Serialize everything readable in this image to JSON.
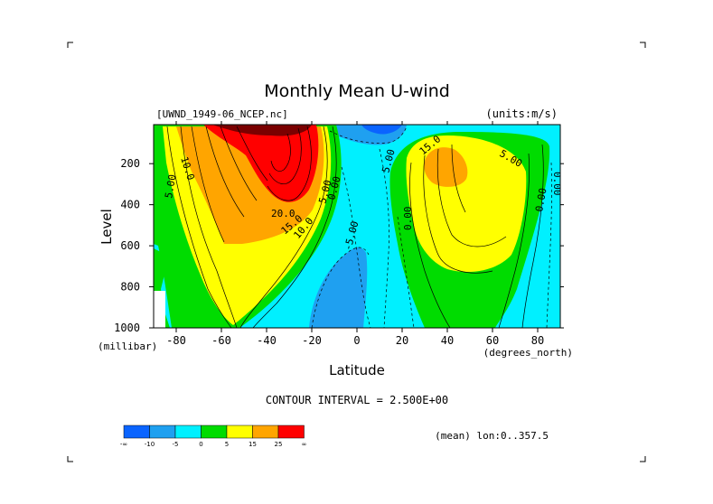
{
  "chart_data": {
    "type": "contour",
    "title": "Monthly Mean U-wind",
    "dataset": "[UWND_1949-06_NCEP.nc]",
    "units": "(units:m/s)",
    "xlabel": "Latitude",
    "x_units": "(degrees_north)",
    "ylabel": "Level",
    "y_units": "(millibar)",
    "xlim": [
      -90,
      90
    ],
    "ylim": [
      1000,
      10
    ],
    "x_ticks": [
      {
        "value": -80,
        "label": "-80"
      },
      {
        "value": -60,
        "label": "-60"
      },
      {
        "value": -40,
        "label": "-40"
      },
      {
        "value": -20,
        "label": "-20"
      },
      {
        "value": 0,
        "label": "0"
      },
      {
        "value": 20,
        "label": "20"
      },
      {
        "value": 40,
        "label": "40"
      },
      {
        "value": 60,
        "label": "60"
      },
      {
        "value": 80,
        "label": "80"
      }
    ],
    "y_ticks": [
      {
        "value": 200,
        "label": "200"
      },
      {
        "value": 400,
        "label": "400"
      },
      {
        "value": 600,
        "label": "600"
      },
      {
        "value": 800,
        "label": "800"
      },
      {
        "value": 1000,
        "label": "1000"
      }
    ],
    "contour_interval_text": "CONTOUR INTERVAL = 2.500E+00",
    "contour_labels": [
      "10.0",
      "5.00",
      "20.0",
      "15.0",
      "10.0",
      "5.00",
      "0.00",
      "-5.00",
      "15.0",
      "5.00",
      "0.00",
      "0.00",
      "0.00",
      "5.00"
    ],
    "jets": [
      {
        "lat": -30,
        "level_mb": 200,
        "max_ms": 40
      },
      {
        "lat": 40,
        "level_mb": 200,
        "max_ms": 20
      }
    ],
    "colorbar": {
      "bins": [
        {
          "color": "#0a64ff",
          "label": "-∞"
        },
        {
          "color": "#1fa0f0",
          "label": "-10"
        },
        {
          "color": "#00f0ff",
          "label": "-5"
        },
        {
          "color": "#00dc00",
          "label": "0"
        },
        {
          "color": "#ffff00",
          "label": "5"
        },
        {
          "color": "#ffa500",
          "label": "15"
        },
        {
          "color": "#ff0000",
          "label": "25"
        }
      ],
      "end_label": "∞"
    },
    "footer": "(mean) lon:0..357.5"
  }
}
